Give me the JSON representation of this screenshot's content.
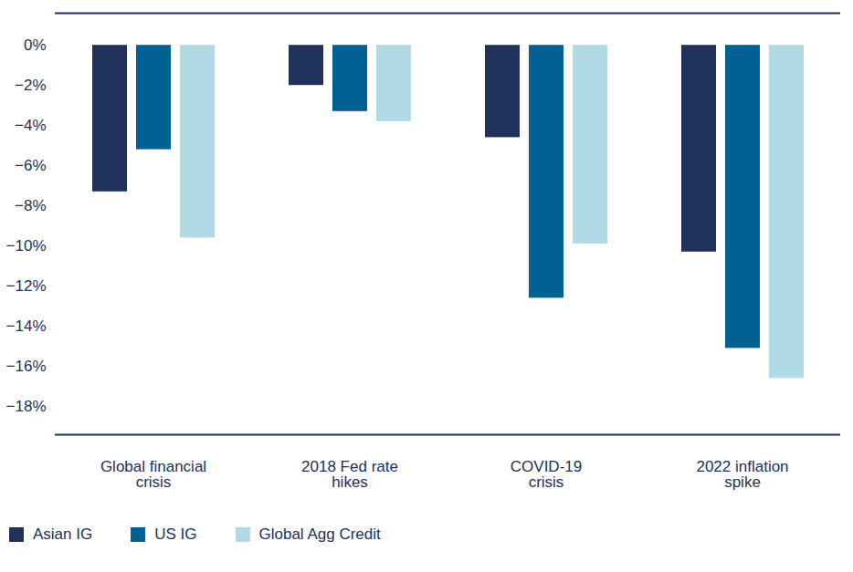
{
  "chart_data": {
    "type": "bar",
    "categories": [
      "Global financial crisis",
      "2018 Fed rate hikes",
      "COVID-19 crisis",
      "2022 inflation spike"
    ],
    "series": [
      {
        "name": "Asian IG",
        "color": "#20315a",
        "values": [
          -7.3,
          -2.0,
          -4.6,
          -10.3
        ]
      },
      {
        "name": "US IG",
        "color": "#006192",
        "values": [
          -5.2,
          -3.3,
          -12.6,
          -15.1
        ]
      },
      {
        "name": "Global Agg Credit",
        "color": "#b1dae6",
        "values": [
          -9.6,
          -3.8,
          -9.9,
          -16.6
        ]
      }
    ],
    "ylim": [
      -19.4,
      1.6
    ],
    "yticks": [
      {
        "value": 0,
        "label": "0%"
      },
      {
        "value": -2,
        "label": "−2%"
      },
      {
        "value": -4,
        "label": "−4%"
      },
      {
        "value": -6,
        "label": "−6%"
      },
      {
        "value": -8,
        "label": "−8%"
      },
      {
        "value": -10,
        "label": "−10%"
      },
      {
        "value": -12,
        "label": "−12%"
      },
      {
        "value": -14,
        "label": "−14%"
      },
      {
        "value": -16,
        "label": "−16%"
      },
      {
        "value": -18,
        "label": "−18%"
      }
    ],
    "grid": false,
    "legend": "bottom"
  }
}
